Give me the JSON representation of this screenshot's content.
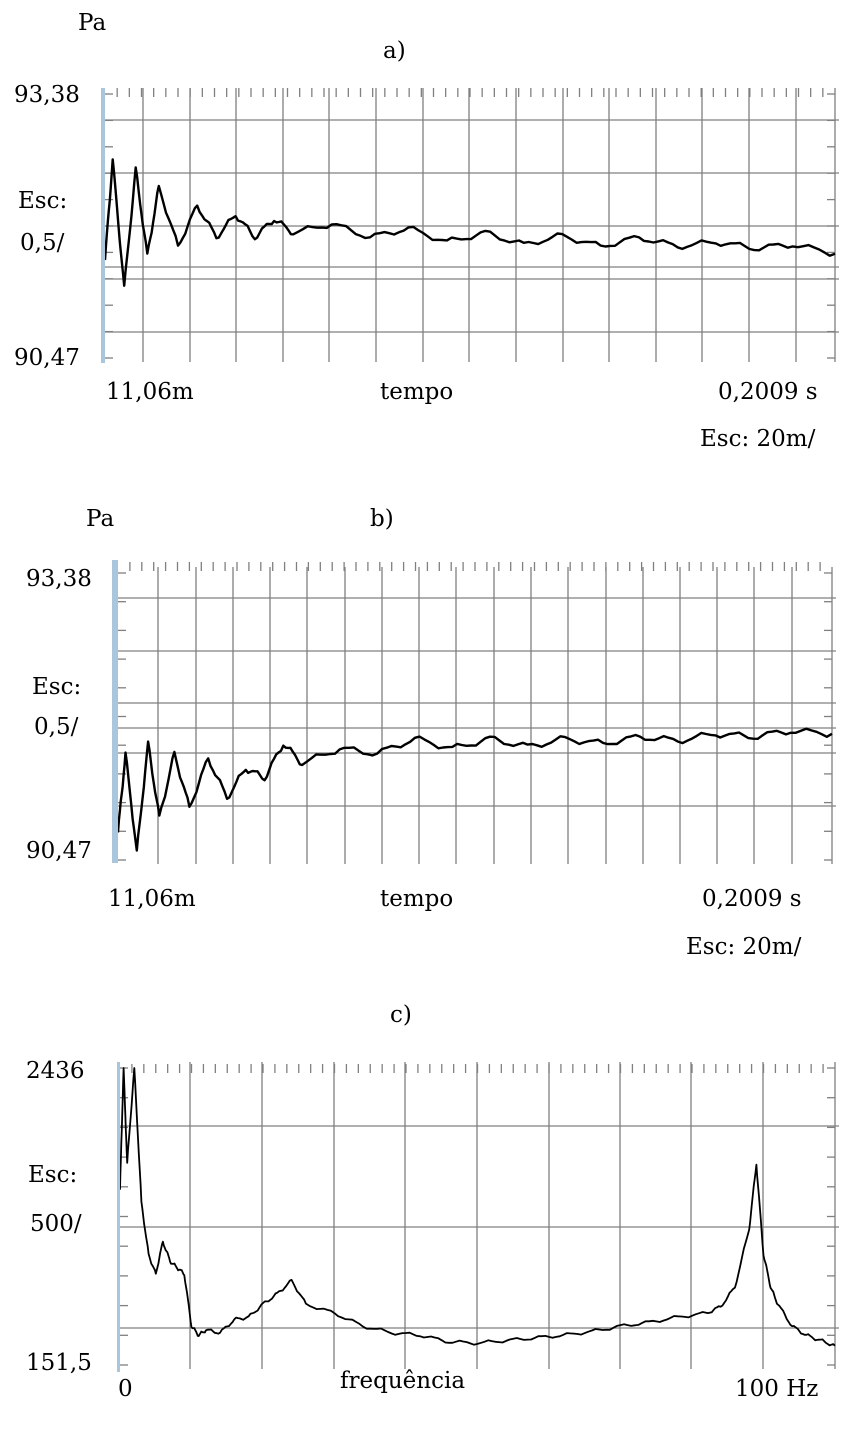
{
  "chart_data": [
    {
      "type": "line",
      "title": "a)",
      "unit_label": "Pa",
      "ylim": [
        90.47,
        93.38
      ],
      "y_top_label": "93,38",
      "y_bottom_label": "90,47",
      "y_scale_label": "Esc:",
      "y_scale_value": "0,5/",
      "x_start_label": "11,06m",
      "xlabel": "tempo",
      "x_end_label": "0,2009 s",
      "x_scale_label": "Esc: 20m/",
      "grid": true,
      "series": [
        {
          "x": [
            0.011,
            0.013,
            0.016,
            0.019,
            0.022,
            0.025,
            0.03,
            0.035,
            0.04,
            0.045,
            0.05,
            0.055,
            0.06,
            0.07,
            0.08,
            0.09,
            0.1,
            0.11,
            0.12,
            0.13,
            0.14,
            0.15,
            0.16,
            0.17,
            0.18,
            0.19,
            0.201
          ],
          "y": [
            91.55,
            92.65,
            91.25,
            92.55,
            91.6,
            92.35,
            91.7,
            92.15,
            91.8,
            92.05,
            91.8,
            92.0,
            91.85,
            91.95,
            91.8,
            91.9,
            91.75,
            91.85,
            91.72,
            91.82,
            91.7,
            91.8,
            91.7,
            91.75,
            91.68,
            91.72,
            91.62
          ]
        }
      ]
    },
    {
      "type": "line",
      "title": "b)",
      "unit_label": "Pa",
      "ylim": [
        90.47,
        93.38
      ],
      "y_top_label": "93,38",
      "y_bottom_label": "90,47",
      "y_scale_label": "Esc:",
      "y_scale_value": "0,5/",
      "x_start_label": "11,06m",
      "xlabel": "tempo",
      "x_end_label": "0,2009 s",
      "x_scale_label": "Esc: 20m/",
      "grid": true,
      "series": [
        {
          "x": [
            0.011,
            0.013,
            0.016,
            0.019,
            0.022,
            0.026,
            0.03,
            0.035,
            0.04,
            0.045,
            0.05,
            0.055,
            0.06,
            0.07,
            0.08,
            0.09,
            0.1,
            0.11,
            0.12,
            0.13,
            0.14,
            0.15,
            0.16,
            0.17,
            0.18,
            0.19,
            0.201
          ],
          "y": [
            90.75,
            91.55,
            90.55,
            91.65,
            90.9,
            91.55,
            91.0,
            91.5,
            91.1,
            91.4,
            91.3,
            91.65,
            91.45,
            91.6,
            91.55,
            91.7,
            91.6,
            91.7,
            91.62,
            91.7,
            91.65,
            91.72,
            91.68,
            91.75,
            91.72,
            91.78,
            91.75
          ]
        }
      ]
    },
    {
      "type": "line",
      "title": "c)",
      "unit_label": "",
      "ylim": [
        151.5,
        2436
      ],
      "y_top_label": "2436",
      "y_bottom_label": "151,5",
      "y_scale_label": "Esc:",
      "y_scale_value": "500/",
      "x_start_label": "0",
      "xlabel": "frequência",
      "x_end_label": "100  Hz",
      "x_scale_label": "",
      "grid": true,
      "series": [
        {
          "x": [
            0,
            0.5,
            1,
            2,
            3,
            4,
            5,
            6,
            7,
            8,
            9,
            10,
            11,
            12,
            14,
            16,
            18,
            20,
            22,
            24,
            26,
            30,
            34,
            38,
            42,
            46,
            50,
            54,
            58,
            62,
            66,
            70,
            74,
            78,
            82,
            84,
            86,
            88,
            89,
            90,
            91,
            92,
            94,
            96,
            98,
            100
          ],
          "y": [
            1500,
            2436,
            1700,
            2436,
            1400,
            1000,
            850,
            1100,
            950,
            900,
            850,
            450,
            380,
            420,
            400,
            500,
            520,
            620,
            700,
            800,
            620,
            550,
            450,
            400,
            380,
            330,
            320,
            340,
            360,
            380,
            410,
            450,
            480,
            520,
            550,
            600,
            750,
            1200,
            1700,
            1000,
            750,
            620,
            450,
            380,
            340,
            300
          ]
        }
      ]
    }
  ]
}
